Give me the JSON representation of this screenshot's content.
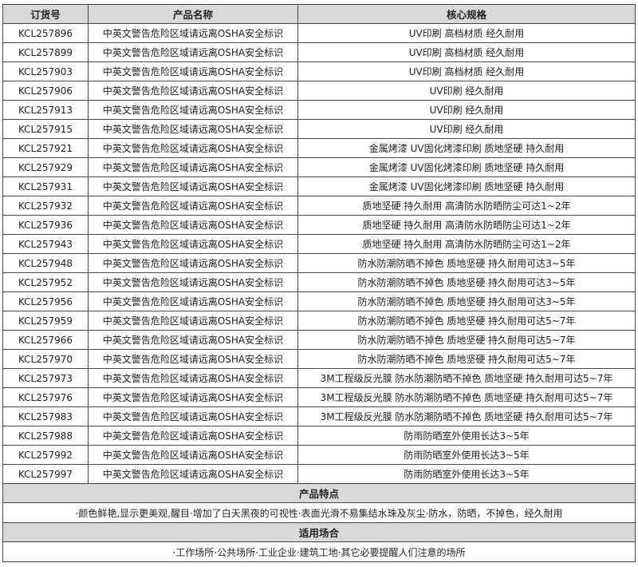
{
  "headers": [
    "订货号",
    "产品名称",
    "核心规格"
  ],
  "rows": [
    [
      "KCL257896",
      "中英文警告危险区域请远离OSHA安全标识",
      "UV印刷 高档材质 经久耐用"
    ],
    [
      "KCL257899",
      "中英文警告危险区域请远离OSHA安全标识",
      "UV印刷 高档材质 经久耐用"
    ],
    [
      "KCL257903",
      "中英文警告危险区域请远离OSHA安全标识",
      "UV印刷 高档材质 经久耐用"
    ],
    [
      "KCL257906",
      "中英文警告危险区域请远离OSHA安全标识",
      "UV印刷 经久耐用"
    ],
    [
      "KCL257913",
      "中英文警告危险区域请远离OSHA安全标识",
      "UV印刷 经久耐用"
    ],
    [
      "KCL257915",
      "中英文警告危险区域请远离OSHA安全标识",
      "UV印刷 经久耐用"
    ],
    [
      "KCL257921",
      "中英文警告危险区域请远离OSHA安全标识",
      "金属烤漆 UV固化烤漆印刷 质地坚硬 持久耐用"
    ],
    [
      "KCL257929",
      "中英文警告危险区域请远离OSHA安全标识",
      "金属烤漆 UV固化烤漆印刷 质地坚硬 持久耐用"
    ],
    [
      "KCL257931",
      "中英文警告危险区域请远离OSHA安全标识",
      "金属烤漆 UV固化烤漆印刷 质地坚硬 持久耐用"
    ],
    [
      "KCL257932",
      "中英文警告危险区域请远离OSHA安全标识",
      "质地坚硬 持久耐用 高清防水防晒防尘可达1~2年"
    ],
    [
      "KCL257936",
      "中英文警告危险区域请远离OSHA安全标识",
      "质地坚硬 持久耐用 高清防水防晒防尘可达1~2年"
    ],
    [
      "KCL257943",
      "中英文警告危险区域请远离OSHA安全标识",
      "质地坚硬 持久耐用 高清防水防晒防尘可达1~2年"
    ],
    [
      "KCL257948",
      "中英文警告危险区域请远离OSHA安全标识",
      "防水防潮防晒不掉色 质地坚硬 持久耐用可达3~5年"
    ],
    [
      "KCL257952",
      "中英文警告危险区域请远离OSHA安全标识",
      "防水防潮防晒不掉色 质地坚硬 持久耐用可达3~5年"
    ],
    [
      "KCL257956",
      "中英文警告危险区域请远离OSHA安全标识",
      "防水防潮防晒不掉色 质地坚硬 持久耐用可达3~5年"
    ],
    [
      "KCL257959",
      "中英文警告危险区域请远离OSHA安全标识",
      "防水防潮防晒不掉色 质地坚硬 持久耐用可达5~7年"
    ],
    [
      "KCL257966",
      "中英文警告危险区域请远离OSHA安全标识",
      "防水防潮防晒不掉色 质地坚硬 持久耐用可达5~7年"
    ],
    [
      "KCL257970",
      "中英文警告危险区域请远离OSHA安全标识",
      "防水防潮防晒不掉色 质地坚硬 持久耐用可达5~7年"
    ],
    [
      "KCL257973",
      "中英文警告危险区域请远离OSHA安全标识",
      "3M工程级反光膜 防水防潮防晒不掉色 质地坚硬 持久耐用可达5~7年"
    ],
    [
      "KCL257976",
      "中英文警告危险区域请远离OSHA安全标识",
      "3M工程级反光膜 防水防潮防晒不掉色 质地坚硬 持久耐用可达5~7年"
    ],
    [
      "KCL257983",
      "中英文警告危险区域请远离OSHA安全标识",
      "3M工程级反光膜 防水防潮防晒不掉色 质地坚硬 持久耐用可达5~7年"
    ],
    [
      "KCL257988",
      "中英文警告危险区域请远离OSHA安全标识",
      "防雨防晒室外使用长达3~5年"
    ],
    [
      "KCL257992",
      "中英文警告危险区域请远离OSHA安全标识",
      "防雨防晒室外使用长达3~5年"
    ],
    [
      "KCL257997",
      "中英文警告危险区域请远离OSHA安全标识",
      "防雨防晒室外使用长达3~5年"
    ]
  ],
  "features": {
    "title": "产品特点",
    "text": "·颜色鲜艳,显示更美观,醒目·增加了白天黑夜的可视性·表面光滑不易集结水珠及灰尘·防水，防晒，不掉色，经久耐用"
  },
  "usage": {
    "title": "适用场合",
    "text": "·工作场所·公共场所·工业企业·建筑工地·其它必要提醒人们注意的场所"
  },
  "colors": {
    "header_bg": "#d9d9d9",
    "border": "#444444"
  }
}
